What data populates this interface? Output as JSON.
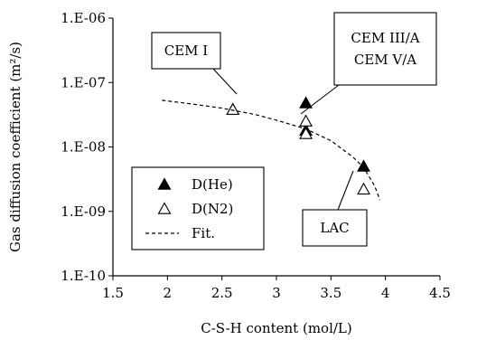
{
  "chart_data": {
    "type": "scatter",
    "xlabel": "C-S-H content (mol/L)",
    "ylabel": "Gas diffusion coefficient (m²/s)",
    "xlim": [
      1.5,
      4.5
    ],
    "x_ticks": [
      "1.5",
      "2",
      "2.5",
      "3",
      "3.5",
      "4",
      "4.5"
    ],
    "x_tick_values": [
      1.5,
      2,
      2.5,
      3,
      3.5,
      4,
      4.5
    ],
    "y_scale": "log",
    "ylim": [
      1e-10,
      1e-06
    ],
    "y_ticks": [
      "1.E-06",
      "1.E-07",
      "1.E-08",
      "1.E-09",
      "1.E-10"
    ],
    "y_tick_values": [
      1e-06,
      1e-07,
      1e-08,
      1e-09,
      1e-10
    ],
    "grid": false,
    "legend_position": "bottom-left",
    "series": [
      {
        "name": "D(He)",
        "marker": "filled-triangle",
        "points": [
          [
            2.6,
            3.8e-08
          ],
          [
            3.27,
            4.8e-08
          ],
          [
            3.27,
            1.8e-08
          ],
          [
            3.8,
            5e-09
          ]
        ]
      },
      {
        "name": "D(N2)",
        "marker": "open-triangle",
        "points": [
          [
            2.6,
            3.8e-08
          ],
          [
            3.27,
            2.5e-08
          ],
          [
            3.27,
            1.6e-08
          ],
          [
            3.8,
            2.2e-09
          ]
        ]
      },
      {
        "name": "Fit.",
        "style": "dashed-line",
        "points": [
          [
            1.95,
            5.3e-08
          ],
          [
            2.2,
            4.7e-08
          ],
          [
            2.5,
            4e-08
          ],
          [
            2.8,
            3.2e-08
          ],
          [
            3.0,
            2.6e-08
          ],
          [
            3.27,
            1.9e-08
          ],
          [
            3.5,
            1.25e-08
          ],
          [
            3.7,
            7e-09
          ],
          [
            3.8,
            4.8e-09
          ],
          [
            3.9,
            2.5e-09
          ],
          [
            3.95,
            1.5e-09
          ]
        ]
      }
    ],
    "annotations": [
      {
        "id": "cem1",
        "lines": [
          "CEM I"
        ]
      },
      {
        "id": "cem3",
        "lines": [
          "CEM III/A",
          "CEM V/A"
        ]
      },
      {
        "id": "lac",
        "lines": [
          "LAC"
        ]
      }
    ],
    "legend": [
      {
        "label": "D(He)",
        "marker": "filled-triangle"
      },
      {
        "label": "D(N2)",
        "marker": "open-triangle"
      },
      {
        "label": "Fit.",
        "marker": "dashed-line"
      }
    ]
  }
}
